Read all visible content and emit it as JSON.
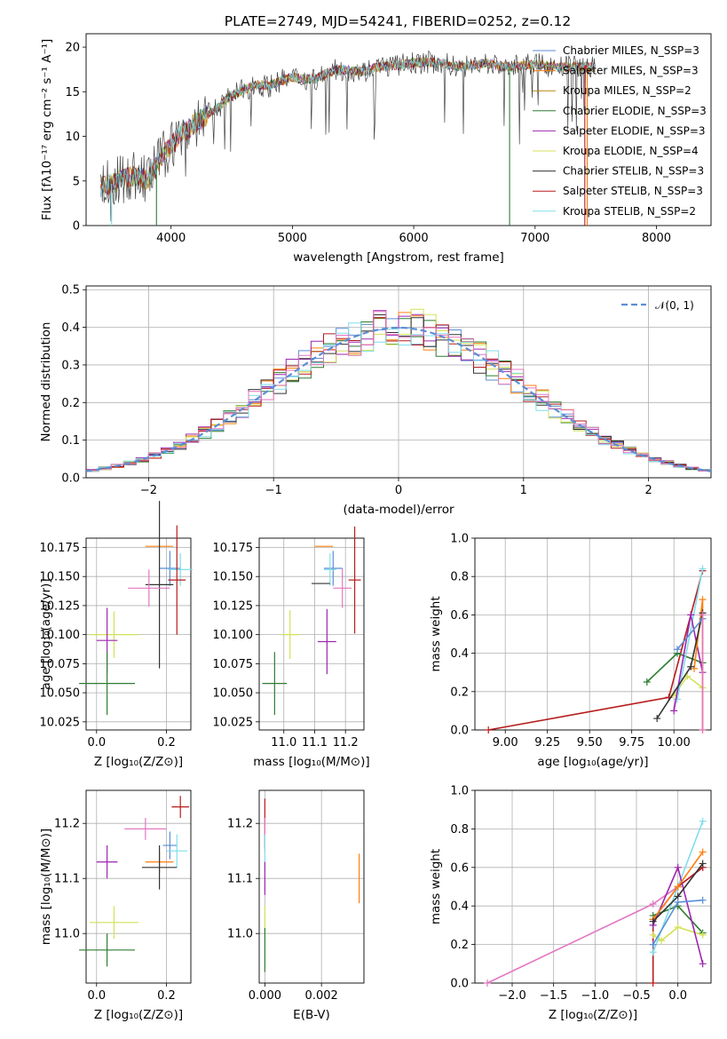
{
  "figure": {
    "title": "PLATE=2749, MJD=54241, FIBERID=0252, z=0.12"
  },
  "chart_data": [
    {
      "id": "spectrum",
      "type": "line",
      "xlabel": "wavelength [Angstrom, rest frame]",
      "ylabel": "Flux [fλ10⁻¹⁷ erg cm⁻² s⁻¹ A⁻¹]",
      "xlim": [
        3300,
        8450
      ],
      "ylim": [
        0,
        21.5
      ],
      "xticks": [
        4000,
        5000,
        6000,
        7000,
        8000
      ],
      "yticks": [
        0,
        5,
        10,
        15,
        20
      ],
      "grid": false,
      "legend_position": "top-right",
      "spectrum_wavelengths": [
        3420,
        3500,
        3600,
        3700,
        3800,
        3900,
        4000,
        4100,
        4200,
        4300,
        4400,
        4500,
        4600,
        4700,
        4800,
        4900,
        5000,
        5100,
        5200,
        5300,
        5400,
        5500,
        5600,
        5700,
        5800,
        5900,
        6000,
        6100,
        6200,
        6300,
        6400,
        6500,
        6600,
        6700,
        6800,
        6900,
        7000,
        7100,
        7200,
        7300,
        7400,
        7500
      ],
      "spectrum_flux": [
        4.4,
        4.6,
        5.2,
        5.6,
        5.1,
        7.2,
        9.0,
        10.5,
        11.5,
        12.4,
        13.4,
        14.6,
        15.2,
        15.8,
        15.6,
        16.2,
        16.6,
        16.4,
        16.5,
        17.2,
        17.5,
        17.4,
        17.3,
        17.8,
        17.9,
        18.0,
        18.2,
        18.3,
        18.3,
        18.0,
        17.8,
        18.0,
        18.2,
        17.9,
        17.8,
        17.9,
        18.1,
        17.9,
        17.7,
        17.8,
        17.8,
        17.7
      ],
      "spikes": [
        {
          "x": 3510,
          "series": 8
        },
        {
          "x": 3880,
          "series": 3
        },
        {
          "x": 6790,
          "series": 3
        },
        {
          "x": 7410,
          "series": 7
        },
        {
          "x": 7430,
          "series": 1
        }
      ],
      "legend": [
        "Chabrier MILES, N_SSP=3",
        "Salpeter MILES, N_SSP=3",
        "Kroupa MILES, N_SSP=2",
        "Chabrier ELODIE, N_SSP=3",
        "Salpeter ELODIE, N_SSP=3",
        "Kroupa ELODIE, N_SSP=4",
        "Chabrier STELIB, N_SSP=3",
        "Salpeter STELIB, N_SSP=3",
        "Kroupa STELIB, N_SSP=2"
      ],
      "series_colors": [
        "#5b8ed6",
        "#ff7f0e",
        "#b8860b",
        "#2e7d32",
        "#9c27b0",
        "#d4e157",
        "#333333",
        "#b71c1c",
        "#80deea"
      ]
    },
    {
      "id": "residuals",
      "type": "histogram",
      "xlabel": "(data-model)/error",
      "ylabel": "Normed distribution",
      "xlim": [
        -2.5,
        2.5
      ],
      "ylim": [
        0,
        0.51
      ],
      "xticks": [
        -2,
        -1,
        0,
        1,
        2
      ],
      "yticks": [
        0.0,
        0.1,
        0.2,
        0.3,
        0.4,
        0.5
      ],
      "grid": true,
      "legend_position": "top-right",
      "legend": [
        "𝒩(0, 1)"
      ],
      "bin_width": 0.1,
      "bin_start": -2.5,
      "series_colors": [
        "#5b8ed6",
        "#ff7f0e",
        "#2e7d32",
        "#9c27b0",
        "#d4e157",
        "#333333",
        "#b71c1c",
        "#80deea",
        "#e377c2"
      ],
      "gaussian": {
        "mu": 0,
        "sigma": 1,
        "color": "#5b8ed6"
      }
    },
    {
      "id": "age-vs-z",
      "type": "errorbar",
      "xlabel": "Z [log₁₀(Z/Z⊙)]",
      "ylabel": "age  [log₁₀(age/yr)]",
      "xlim": [
        -0.03,
        0.27
      ],
      "ylim": [
        10.018,
        10.183
      ],
      "xticks": [
        0.0,
        0.2
      ],
      "yticks": [
        10.025,
        10.05,
        10.075,
        10.1,
        10.125,
        10.15,
        10.175
      ],
      "ytick_labels": [
        "10.025",
        "10.050",
        "10.075",
        "10.100",
        "10.125",
        "10.150",
        "10.175"
      ],
      "grid": true,
      "points": [
        {
          "x": 0.18,
          "y": 10.176,
          "xerr": 0.04,
          "yerr": 0.0,
          "color": "#ff7f0e"
        },
        {
          "x": 0.21,
          "y": 10.157,
          "xerr": 0.03,
          "yerr": 0.015,
          "color": "#5b8ed6"
        },
        {
          "x": 0.24,
          "y": 10.156,
          "xerr": 0.035,
          "yerr": 0.014,
          "color": "#80deea"
        },
        {
          "x": 0.23,
          "y": 10.147,
          "xerr": 0.025,
          "yerr": 0.047,
          "color": "#b71c1c"
        },
        {
          "x": 0.18,
          "y": 10.143,
          "xerr": 0.04,
          "yerr": 0.072,
          "color": "#333333"
        },
        {
          "x": 0.15,
          "y": 10.14,
          "xerr": 0.06,
          "yerr": 0.016,
          "color": "#e377c2"
        },
        {
          "x": 0.05,
          "y": 10.1,
          "xerr": 0.07,
          "yerr": 0.02,
          "color": "#d4e157"
        },
        {
          "x": 0.03,
          "y": 10.095,
          "xerr": 0.03,
          "yerr": 0.028,
          "color": "#9c27b0"
        },
        {
          "x": 0.03,
          "y": 10.058,
          "xerr": 0.08,
          "yerr": 0.027,
          "color": "#2e7d32"
        }
      ]
    },
    {
      "id": "age-vs-mass",
      "type": "errorbar",
      "xlabel": "mass [log₁₀(M/M⊙)]",
      "ylabel": "",
      "xlim": [
        10.92,
        11.26
      ],
      "ylim": [
        10.018,
        10.183
      ],
      "xticks": [
        11.0,
        11.1,
        11.2
      ],
      "yticks": [
        10.025,
        10.05,
        10.075,
        10.1,
        10.125,
        10.15,
        10.175
      ],
      "ytick_labels": [
        "10.025",
        "10.050",
        "10.075",
        "10.100",
        "10.125",
        "10.150",
        "10.175"
      ],
      "grid": true,
      "points": [
        {
          "x": 11.13,
          "y": 10.176,
          "xerr": 0.03,
          "yerr": 0.0,
          "color": "#ff7f0e"
        },
        {
          "x": 11.16,
          "y": 10.157,
          "xerr": 0.03,
          "yerr": 0.015,
          "color": "#5b8ed6"
        },
        {
          "x": 11.15,
          "y": 10.156,
          "xerr": 0.02,
          "yerr": 0.014,
          "color": "#80deea"
        },
        {
          "x": 11.23,
          "y": 10.147,
          "xerr": 0.02,
          "yerr": 0.046,
          "color": "#b71c1c"
        },
        {
          "x": 11.12,
          "y": 10.144,
          "xerr": 0.03,
          "yerr": 0.0,
          "color": "#333333"
        },
        {
          "x": 11.19,
          "y": 10.14,
          "xerr": 0.03,
          "yerr": 0.017,
          "color": "#e377c2"
        },
        {
          "x": 11.02,
          "y": 10.1,
          "xerr": 0.03,
          "yerr": 0.021,
          "color": "#d4e157"
        },
        {
          "x": 11.14,
          "y": 10.094,
          "xerr": 0.03,
          "yerr": 0.028,
          "color": "#9c27b0"
        },
        {
          "x": 10.97,
          "y": 10.058,
          "xerr": 0.04,
          "yerr": 0.027,
          "color": "#2e7d32"
        }
      ]
    },
    {
      "id": "massweight-vs-age",
      "type": "line",
      "xlabel": "age  [log₁₀(age/yr)]",
      "ylabel": "mass weight",
      "xlim": [
        8.82,
        10.22
      ],
      "ylim": [
        0,
        1.0
      ],
      "xticks": [
        9.0,
        9.25,
        9.5,
        9.75,
        10.0
      ],
      "xtick_labels": [
        "9.00",
        "9.25",
        "9.50",
        "9.75",
        "10.00"
      ],
      "yticks": [
        0.0,
        0.2,
        0.4,
        0.6,
        0.8,
        1.0
      ],
      "grid": true,
      "series": [
        {
          "color": "#b71c1c",
          "x": [
            8.9,
            9.97,
            10.17
          ],
          "y": [
            0.0,
            0.17,
            0.83
          ]
        },
        {
          "color": "#2e7d32",
          "x": [
            9.84,
            10.02,
            10.17
          ],
          "y": [
            0.25,
            0.4,
            0.35
          ]
        },
        {
          "color": "#d4e157",
          "x": [
            10.0,
            10.08,
            10.17
          ],
          "y": [
            0.18,
            0.28,
            0.22
          ]
        },
        {
          "color": "#80deea",
          "x": [
            10.02,
            10.17
          ],
          "y": [
            0.16,
            0.84
          ]
        },
        {
          "color": "#9c27b0",
          "x": [
            10.0,
            10.1,
            10.17
          ],
          "y": [
            0.1,
            0.6,
            0.3
          ]
        },
        {
          "color": "#ff7f0e",
          "x": [
            10.12,
            10.17,
            10.17
          ],
          "y": [
            0.32,
            0.68,
            0.0
          ]
        },
        {
          "color": "#333333",
          "x": [
            9.9,
            10.1,
            10.17
          ],
          "y": [
            0.06,
            0.33,
            0.61
          ]
        },
        {
          "color": "#5b8ed6",
          "x": [
            10.02,
            10.17
          ],
          "y": [
            0.42,
            0.58
          ]
        },
        {
          "color": "#e377c2",
          "x": [
            10.17,
            10.17
          ],
          "y": [
            0.0,
            0.6
          ]
        }
      ]
    },
    {
      "id": "mass-vs-z",
      "type": "errorbar",
      "xlabel": "Z [log₁₀(Z/Z⊙)]",
      "ylabel": "mass [log₁₀(M/M⊙)]",
      "xlim": [
        -0.03,
        0.27
      ],
      "ylim": [
        10.91,
        11.26
      ],
      "xticks": [
        0.0,
        0.2
      ],
      "yticks": [
        11.0,
        11.1,
        11.2
      ],
      "grid": true,
      "points": [
        {
          "x": 0.24,
          "y": 11.23,
          "xerr": 0.025,
          "yerr": 0.02,
          "color": "#b71c1c"
        },
        {
          "x": 0.14,
          "y": 11.19,
          "xerr": 0.06,
          "yerr": 0.02,
          "color": "#e377c2"
        },
        {
          "x": 0.21,
          "y": 11.16,
          "xerr": 0.02,
          "yerr": 0.025,
          "color": "#5b8ed6"
        },
        {
          "x": 0.23,
          "y": 11.15,
          "xerr": 0.03,
          "yerr": 0.03,
          "color": "#80deea"
        },
        {
          "x": 0.03,
          "y": 11.13,
          "xerr": 0.03,
          "yerr": 0.03,
          "color": "#9c27b0"
        },
        {
          "x": 0.18,
          "y": 11.13,
          "xerr": 0.04,
          "yerr": 0.02,
          "color": "#ff7f0e"
        },
        {
          "x": 0.18,
          "y": 11.12,
          "xerr": 0.05,
          "yerr": 0.04,
          "color": "#333333"
        },
        {
          "x": 0.05,
          "y": 11.02,
          "xerr": 0.07,
          "yerr": 0.03,
          "color": "#d4e157"
        },
        {
          "x": 0.03,
          "y": 10.97,
          "xerr": 0.08,
          "yerr": 0.03,
          "color": "#2e7d32"
        }
      ]
    },
    {
      "id": "mass-vs-ebv",
      "type": "errorbar",
      "xlabel": "E(B-V)",
      "ylabel": "",
      "xlim": [
        -0.0002,
        0.0035
      ],
      "ylim": [
        10.91,
        11.26
      ],
      "xticks": [
        0.0,
        0.002
      ],
      "xtick_labels": [
        "0.000",
        "0.002"
      ],
      "yticks": [
        11.0,
        11.1,
        11.2
      ],
      "grid": true,
      "points": [
        {
          "x": 0.0,
          "y": 11.2,
          "xerr": 0.0,
          "yerr": 0.045,
          "color": "#b71c1c"
        },
        {
          "x": 0.0,
          "y": 11.18,
          "xerr": 0.0,
          "yerr": 0.03,
          "color": "#e377c2"
        },
        {
          "x": 0.0,
          "y": 11.15,
          "xerr": 0.0,
          "yerr": 0.03,
          "color": "#80deea"
        },
        {
          "x": 0.0,
          "y": 11.1,
          "xerr": 0.0,
          "yerr": 0.03,
          "color": "#9c27b0"
        },
        {
          "x": 0.0,
          "y": 11.02,
          "xerr": 0.0,
          "yerr": 0.03,
          "color": "#d4e157"
        },
        {
          "x": 0.0,
          "y": 10.97,
          "xerr": 0.0,
          "yerr": 0.04,
          "color": "#2e7d32"
        },
        {
          "x": 0.00333,
          "y": 11.1,
          "xerr": 0.0,
          "yerr": 0.045,
          "color": "#ff7f0e"
        }
      ]
    },
    {
      "id": "massweight-vs-z",
      "type": "line",
      "xlabel": "Z [log₁₀(Z/Z⊙)]",
      "ylabel": "mass weight",
      "xlim": [
        -2.45,
        0.4
      ],
      "ylim": [
        0,
        1.0
      ],
      "xticks": [
        -2.0,
        -1.5,
        -1.0,
        -0.5,
        0.0
      ],
      "yticks": [
        0.0,
        0.2,
        0.4,
        0.6,
        0.8,
        1.0
      ],
      "grid": true,
      "series": [
        {
          "color": "#e377c2",
          "x": [
            -2.3,
            -0.3,
            0.0,
            0.3
          ],
          "y": [
            0.0,
            0.41,
            0.5,
            0.6
          ]
        },
        {
          "color": "#b71c1c",
          "x": [
            -0.3,
            -0.3,
            0.0,
            0.3
          ],
          "y": [
            0.0,
            0.33,
            0.5,
            0.6
          ]
        },
        {
          "color": "#2e7d32",
          "x": [
            -0.3,
            0.0,
            0.3
          ],
          "y": [
            0.35,
            0.4,
            0.26
          ]
        },
        {
          "color": "#d4e157",
          "x": [
            -0.3,
            -0.2,
            0.0,
            0.3
          ],
          "y": [
            0.25,
            0.22,
            0.29,
            0.25
          ]
        },
        {
          "color": "#80deea",
          "x": [
            -0.3,
            0.0,
            0.3
          ],
          "y": [
            0.16,
            0.5,
            0.84
          ]
        },
        {
          "color": "#9c27b0",
          "x": [
            -0.3,
            0.0,
            0.3
          ],
          "y": [
            0.3,
            0.6,
            0.1
          ]
        },
        {
          "color": "#ff7f0e",
          "x": [
            -0.3,
            0.0,
            0.3
          ],
          "y": [
            0.33,
            0.5,
            0.68
          ]
        },
        {
          "color": "#333333",
          "x": [
            -0.3,
            0.0,
            0.3
          ],
          "y": [
            0.32,
            0.45,
            0.62
          ]
        },
        {
          "color": "#5b8ed6",
          "x": [
            -0.3,
            0.0,
            0.3
          ],
          "y": [
            0.2,
            0.42,
            0.43
          ]
        }
      ]
    }
  ]
}
